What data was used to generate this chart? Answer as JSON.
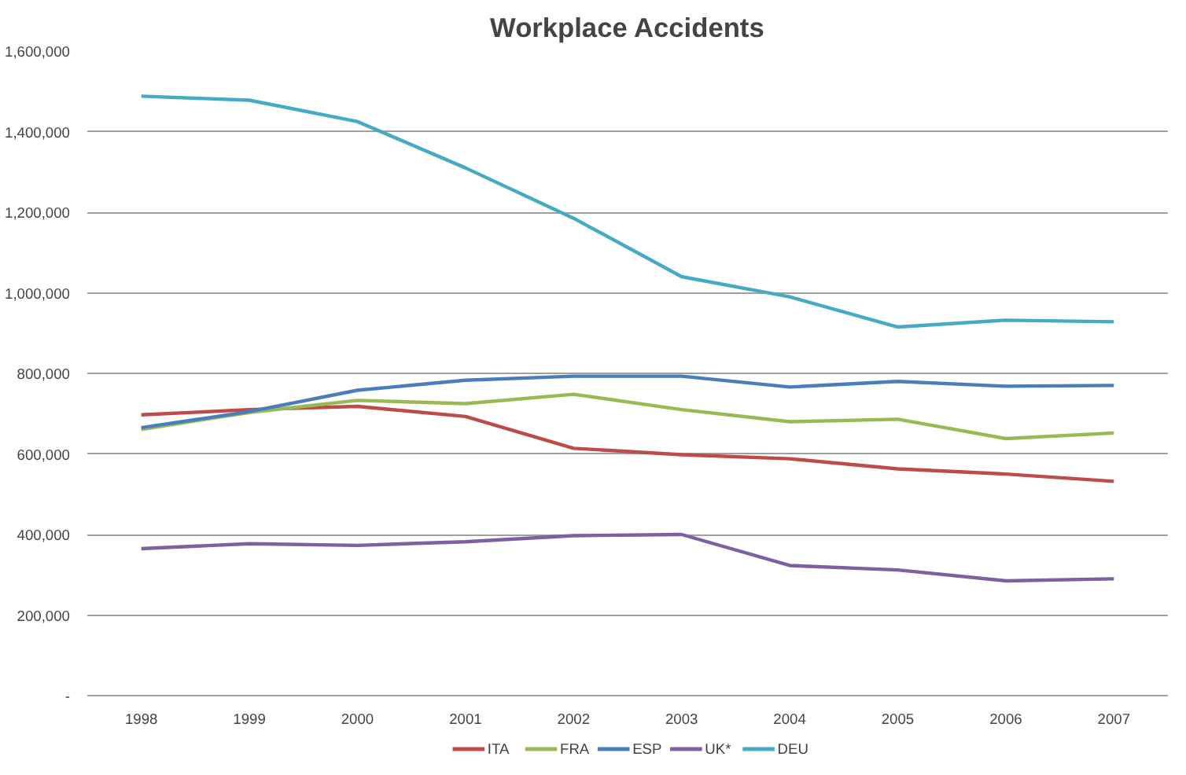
{
  "chart_data": {
    "type": "line",
    "title": "Workplace Accidents",
    "categories": [
      "1998",
      "1999",
      "2000",
      "2001",
      "2002",
      "2003",
      "2004",
      "2005",
      "2006",
      "2007"
    ],
    "series": [
      {
        "name": "ITA",
        "color": "#be4b48",
        "values": [
          697000,
          710000,
          718000,
          693000,
          614000,
          598000,
          588000,
          563000,
          550000,
          532000
        ]
      },
      {
        "name": "FRA",
        "color": "#98b954",
        "values": [
          661000,
          703000,
          733000,
          725000,
          748000,
          710000,
          680000,
          686000,
          638000,
          652000
        ]
      },
      {
        "name": "ESP",
        "color": "#4a7ebb",
        "values": [
          665000,
          705000,
          758000,
          783000,
          793000,
          793000,
          766000,
          780000,
          768000,
          770000
        ]
      },
      {
        "name": "UK*",
        "color": "#7d60a0",
        "values": [
          365000,
          377000,
          373000,
          382000,
          397000,
          400000,
          323000,
          312000,
          285000,
          290000
        ]
      },
      {
        "name": "DEU",
        "color": "#46aac5",
        "values": [
          1488000,
          1478000,
          1425000,
          1310000,
          1185000,
          1040000,
          990000,
          915000,
          932000,
          928000
        ]
      }
    ],
    "ylim": [
      0,
      1600000
    ],
    "yticks": [
      {
        "value": 0,
        "label": "-"
      },
      {
        "value": 200000,
        "label": "200,000"
      },
      {
        "value": 400000,
        "label": "400,000"
      },
      {
        "value": 600000,
        "label": "600,000"
      },
      {
        "value": 800000,
        "label": "800,000"
      },
      {
        "value": 1000000,
        "label": "1,000,000"
      },
      {
        "value": 1200000,
        "label": "1,200,000"
      },
      {
        "value": 1400000,
        "label": "1,400,000"
      },
      {
        "value": 1600000,
        "label": "1,600,000"
      }
    ],
    "grid": "y",
    "legend": "bottom",
    "marker": "none",
    "line_style": "solid"
  }
}
